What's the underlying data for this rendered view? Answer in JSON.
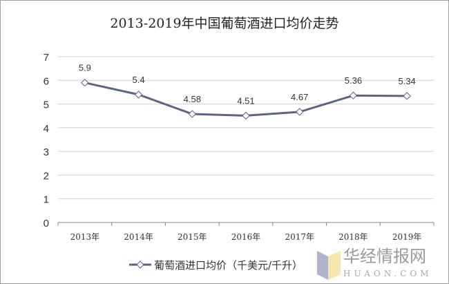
{
  "chart_data": {
    "type": "line",
    "title": "2013-2019年中国葡萄酒进口均价走势",
    "categories": [
      "2013年",
      "2014年",
      "2015年",
      "2016年",
      "2017年",
      "2018年",
      "2019年"
    ],
    "series": [
      {
        "name": "葡萄酒进口均价（千美元/千升）",
        "values": [
          5.9,
          5.4,
          4.58,
          4.51,
          4.67,
          5.36,
          5.34
        ],
        "labels": [
          "5.9",
          "5.4",
          "4.58",
          "4.51",
          "4.67",
          "5.36",
          "5.34"
        ],
        "color": "#5a6485",
        "marker": "diamond"
      }
    ],
    "yticks": [
      0,
      1,
      2,
      3,
      4,
      5,
      6,
      7
    ],
    "ylim": [
      0,
      7
    ],
    "grid": true,
    "legend": "bottom"
  },
  "watermark": {
    "cn": "华经情报网",
    "en": "HUAON.COM"
  }
}
